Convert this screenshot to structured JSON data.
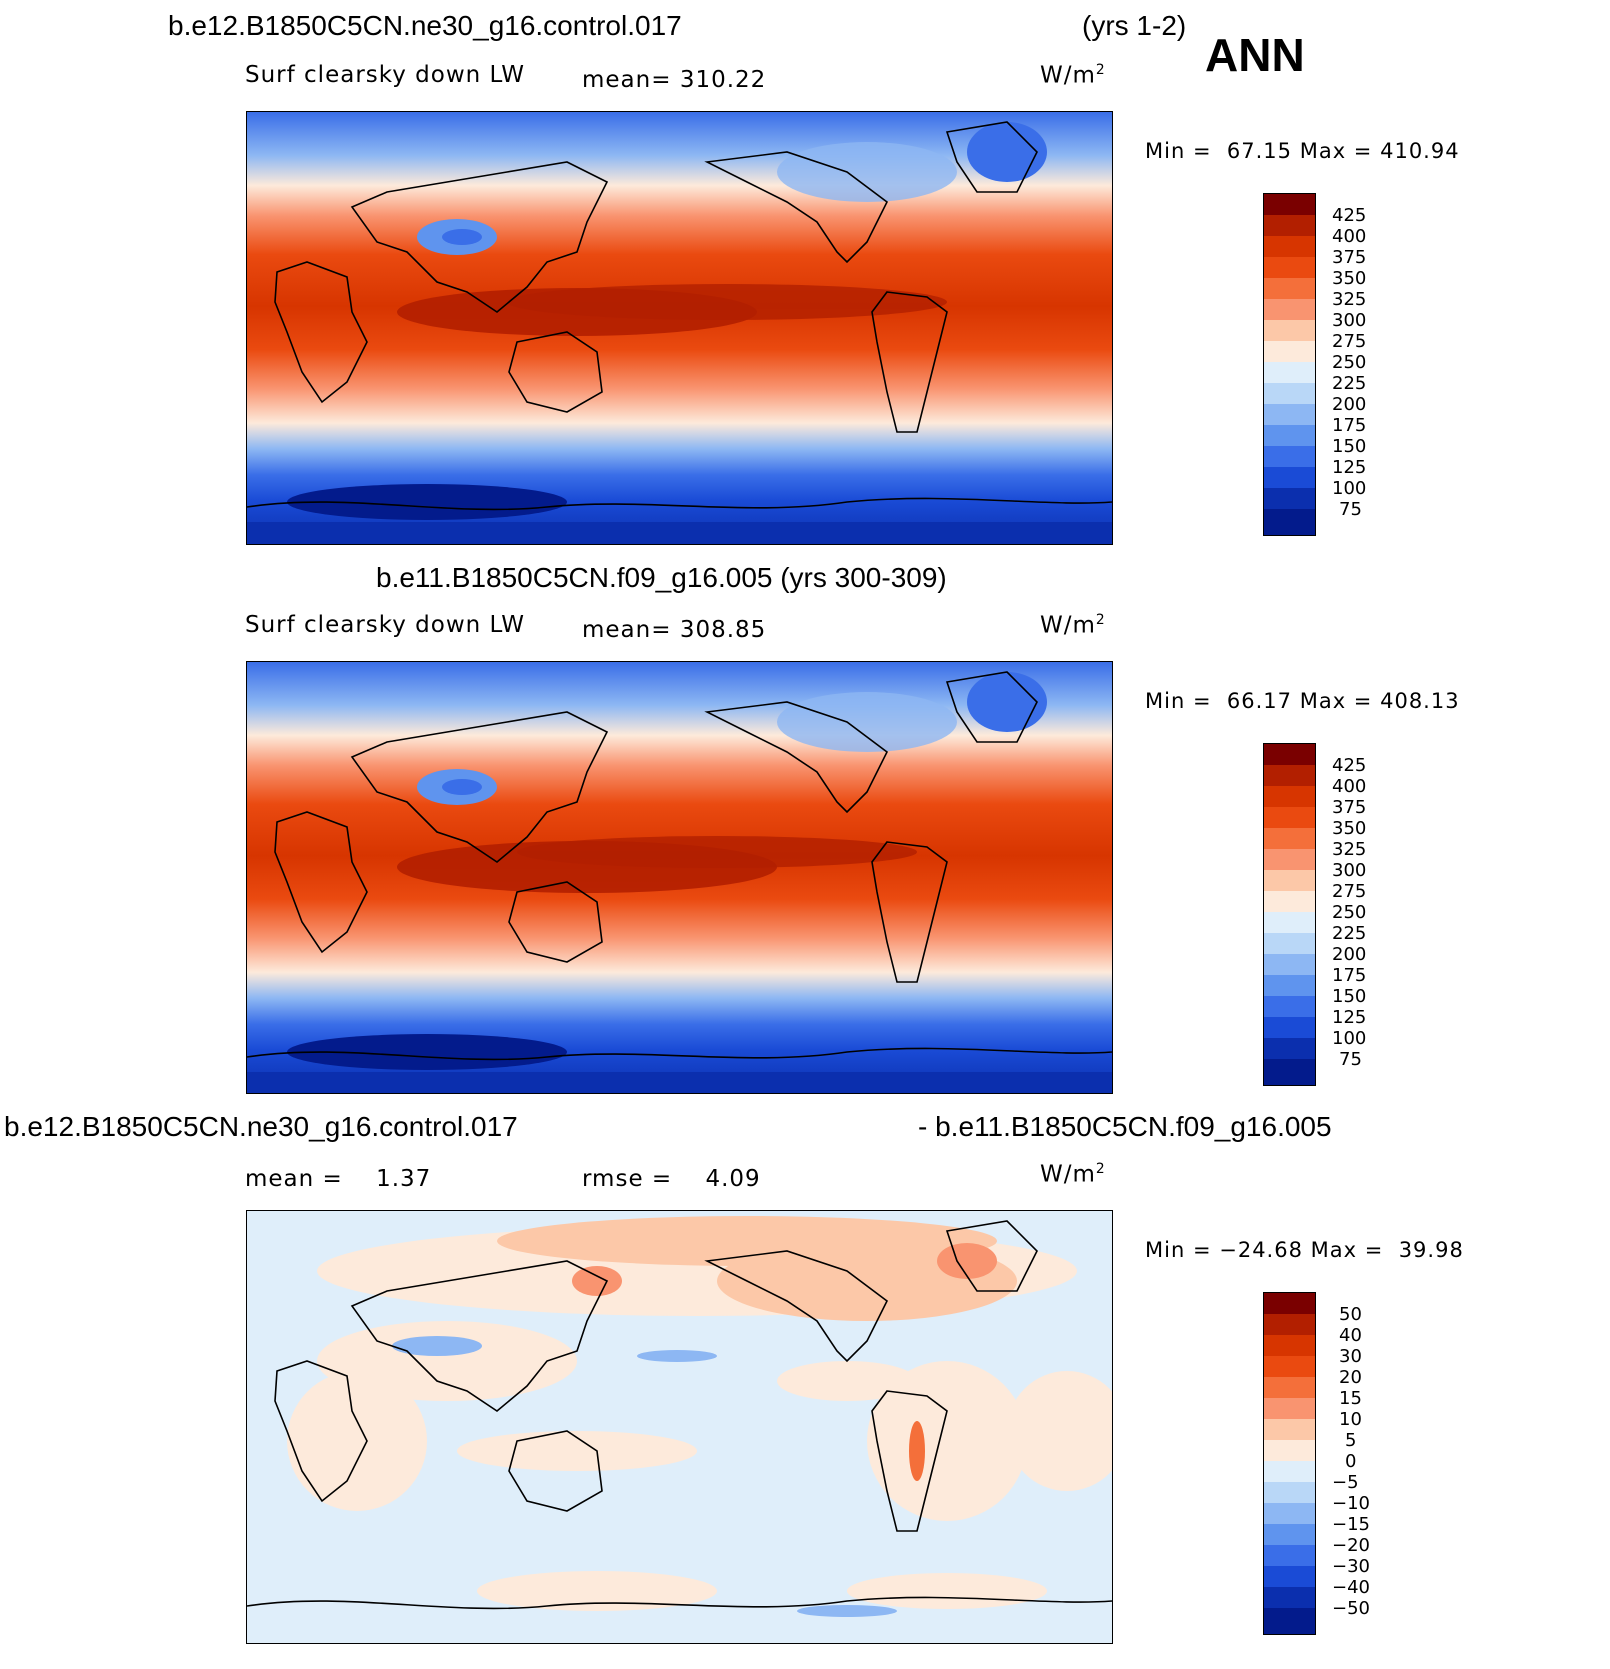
{
  "header": {
    "case_title": "b.e12.B1850C5CN.ne30_g16.control.017",
    "years": "(yrs 1-2)",
    "season": "ANN"
  },
  "panels": [
    {
      "variable": "Surf clearsky down LW",
      "mean_label": "mean=",
      "mean_value": "310.22",
      "units_base": "W/m",
      "units_exp": "2",
      "min_label": "Min =",
      "min_value": "67.15",
      "max_label": "Max =",
      "max_value": "410.94",
      "colorbar": {
        "labels": [
          "425",
          "400",
          "375",
          "350",
          "325",
          "300",
          "275",
          "250",
          "225",
          "200",
          "175",
          "150",
          "125",
          "100",
          "75"
        ],
        "colors": [
          "#7a0000",
          "#b21f00",
          "#d73500",
          "#ea4a10",
          "#f46f3a",
          "#f99470",
          "#fcc8a8",
          "#fdeadb",
          "#dfeefa",
          "#b9d7f7",
          "#8db7f3",
          "#5f94ee",
          "#3a6ee8",
          "#1a4bd6",
          "#0b2fae",
          "#031b8c"
        ]
      }
    },
    {
      "title": "b.e11.B1850C5CN.f09_g16.005 (yrs 300-309)",
      "variable": "Surf clearsky down LW",
      "mean_label": "mean=",
      "mean_value": "308.85",
      "units_base": "W/m",
      "units_exp": "2",
      "min_label": "Min =",
      "min_value": "66.17",
      "max_label": "Max =",
      "max_value": "408.13",
      "colorbar": {
        "labels": [
          "425",
          "400",
          "375",
          "350",
          "325",
          "300",
          "275",
          "250",
          "225",
          "200",
          "175",
          "150",
          "125",
          "100",
          "75"
        ],
        "colors": [
          "#7a0000",
          "#b21f00",
          "#d73500",
          "#ea4a10",
          "#f46f3a",
          "#f99470",
          "#fcc8a8",
          "#fdeadb",
          "#dfeefa",
          "#b9d7f7",
          "#8db7f3",
          "#5f94ee",
          "#3a6ee8",
          "#1a4bd6",
          "#0b2fae",
          "#031b8c"
        ]
      }
    },
    {
      "title_left": "b.e12.B1850C5CN.ne30_g16.control.017",
      "title_right": "- b.e11.B1850C5CN.f09_g16.005",
      "mean_label": "mean =",
      "mean_value": "1.37",
      "rmse_label": "rmse =",
      "rmse_value": "4.09",
      "units_base": "W/m",
      "units_exp": "2",
      "min_label": "Min =",
      "min_value": "−24.68",
      "max_label": "Max =",
      "max_value": "39.98",
      "colorbar": {
        "labels": [
          "50",
          "40",
          "30",
          "20",
          "15",
          "10",
          "5",
          "0",
          "−5",
          "−10",
          "−15",
          "−20",
          "−30",
          "−40",
          "−50"
        ],
        "colors": [
          "#7a0000",
          "#b21f00",
          "#d73500",
          "#ea4a10",
          "#f46f3a",
          "#f99470",
          "#fcc8a8",
          "#fdeadb",
          "#dfeefa",
          "#b9d7f7",
          "#8db7f3",
          "#5f94ee",
          "#3a6ee8",
          "#1a4bd6",
          "#0b2fae",
          "#031b8c"
        ]
      }
    }
  ]
}
